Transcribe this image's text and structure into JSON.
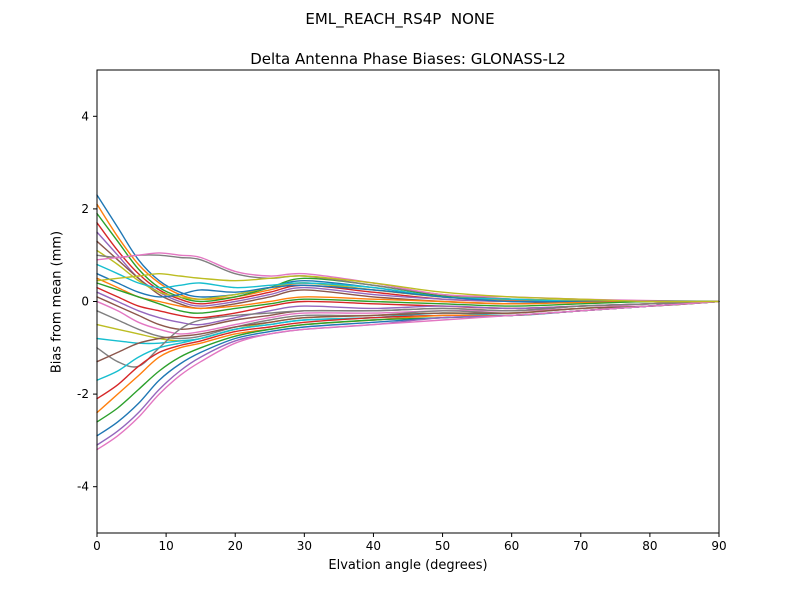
{
  "chart_data": {
    "type": "line",
    "suptitle": "EML_REACH_RS4P  NONE",
    "title": "Delta Antenna Phase Biases: GLONASS-L2",
    "xlabel": "Elvation angle (degrees)",
    "ylabel": "Bias from mean (mm)",
    "xlim": [
      0,
      90
    ],
    "ylim": [
      -5,
      5
    ],
    "xticks": [
      0,
      10,
      20,
      30,
      40,
      50,
      60,
      70,
      80,
      90
    ],
    "yticks": [
      -4,
      -2,
      0,
      2,
      4
    ],
    "grid": false,
    "legend": "none",
    "x": [
      0,
      3,
      6,
      9,
      12,
      15,
      20,
      25,
      30,
      40,
      50,
      60,
      70,
      80,
      90
    ],
    "series": [
      {
        "name": "line-01",
        "color": "#1f77b4",
        "values": [
          2.3,
          1.6,
          0.9,
          0.45,
          0.2,
          0.1,
          0.15,
          0.3,
          0.45,
          0.3,
          0.1,
          0.05,
          0.02,
          0.01,
          0.0
        ]
      },
      {
        "name": "line-02",
        "color": "#ff7f0e",
        "values": [
          2.1,
          1.4,
          0.8,
          0.4,
          0.15,
          0.05,
          0.1,
          0.25,
          0.4,
          0.25,
          0.1,
          0.03,
          0.02,
          0.0,
          0.0
        ]
      },
      {
        "name": "line-03",
        "color": "#2ca02c",
        "values": [
          1.9,
          1.3,
          0.7,
          0.3,
          0.1,
          0.0,
          0.1,
          0.3,
          0.5,
          0.35,
          0.12,
          0.05,
          0.0,
          0.0,
          0.0
        ]
      },
      {
        "name": "line-04",
        "color": "#d62728",
        "values": [
          1.7,
          1.1,
          0.6,
          0.25,
          0.05,
          -0.05,
          0.05,
          0.2,
          0.35,
          0.2,
          0.05,
          0.0,
          0.0,
          0.0,
          0.0
        ]
      },
      {
        "name": "line-05",
        "color": "#9467bd",
        "values": [
          1.5,
          1.0,
          0.5,
          0.2,
          0.0,
          -0.1,
          0.0,
          0.15,
          0.3,
          0.15,
          0.05,
          0.0,
          0.0,
          0.0,
          0.0
        ]
      },
      {
        "name": "line-06",
        "color": "#8c564b",
        "values": [
          1.3,
          0.9,
          0.5,
          0.15,
          -0.05,
          -0.15,
          -0.05,
          0.1,
          0.25,
          0.1,
          0.0,
          -0.05,
          0.0,
          0.0,
          0.0
        ]
      },
      {
        "name": "line-07",
        "color": "#bcbd22",
        "values": [
          1.1,
          0.8,
          0.45,
          0.2,
          0.1,
          0.05,
          0.15,
          0.3,
          0.4,
          0.25,
          0.1,
          0.05,
          0.02,
          0.0,
          0.0
        ]
      },
      {
        "name": "line-08",
        "color": "#7f7f7f",
        "values": [
          1.0,
          0.95,
          1.0,
          1.0,
          0.95,
          0.9,
          0.6,
          0.5,
          0.55,
          0.35,
          0.15,
          0.05,
          0.0,
          0.0,
          0.0
        ]
      },
      {
        "name": "line-09",
        "color": "#e377c2",
        "values": [
          0.9,
          0.95,
          1.0,
          1.05,
          1.0,
          0.95,
          0.65,
          0.55,
          0.6,
          0.4,
          0.15,
          0.1,
          0.05,
          0.02,
          0.0
        ]
      },
      {
        "name": "line-10",
        "color": "#17becf",
        "values": [
          0.8,
          0.6,
          0.4,
          0.3,
          0.35,
          0.4,
          0.3,
          0.35,
          0.4,
          0.3,
          0.1,
          0.05,
          0.0,
          0.0,
          0.0
        ]
      },
      {
        "name": "line-11",
        "color": "#1f77b4",
        "values": [
          0.6,
          0.4,
          0.2,
          0.1,
          0.15,
          0.25,
          0.2,
          0.3,
          0.35,
          0.25,
          0.1,
          0.0,
          0.0,
          0.0,
          0.0
        ]
      },
      {
        "name": "line-12",
        "color": "#ff7f0e",
        "values": [
          0.5,
          0.3,
          0.1,
          0.0,
          -0.1,
          -0.15,
          -0.1,
          0.0,
          0.1,
          0.05,
          0.0,
          -0.05,
          -0.02,
          0.0,
          0.0
        ]
      },
      {
        "name": "line-13",
        "color": "#2ca02c",
        "values": [
          0.4,
          0.25,
          0.1,
          -0.05,
          -0.2,
          -0.25,
          -0.15,
          -0.05,
          0.05,
          0.0,
          -0.05,
          -0.1,
          -0.05,
          0.0,
          0.0
        ]
      },
      {
        "name": "line-14",
        "color": "#d62728",
        "values": [
          0.3,
          0.1,
          -0.1,
          -0.2,
          -0.3,
          -0.35,
          -0.25,
          -0.1,
          0.0,
          -0.05,
          -0.1,
          -0.15,
          -0.1,
          -0.05,
          0.0
        ]
      },
      {
        "name": "line-15",
        "color": "#9467bd",
        "values": [
          0.2,
          0.0,
          -0.2,
          -0.35,
          -0.45,
          -0.5,
          -0.35,
          -0.2,
          -0.1,
          -0.15,
          -0.1,
          -0.15,
          -0.1,
          -0.05,
          0.0
        ]
      },
      {
        "name": "line-16",
        "color": "#8c564b",
        "values": [
          0.1,
          -0.1,
          -0.3,
          -0.5,
          -0.6,
          -0.55,
          -0.4,
          -0.3,
          -0.2,
          -0.2,
          -0.15,
          -0.2,
          -0.1,
          -0.05,
          0.0
        ]
      },
      {
        "name": "line-17",
        "color": "#e377c2",
        "values": [
          0.0,
          -0.2,
          -0.45,
          -0.6,
          -0.7,
          -0.65,
          -0.5,
          -0.35,
          -0.25,
          -0.25,
          -0.2,
          -0.2,
          -0.15,
          -0.05,
          0.0
        ]
      },
      {
        "name": "line-18",
        "color": "#7f7f7f",
        "values": [
          -0.2,
          -0.4,
          -0.6,
          -0.75,
          -0.8,
          -0.75,
          -0.55,
          -0.4,
          -0.3,
          -0.3,
          -0.2,
          -0.25,
          -0.15,
          -0.1,
          0.0
        ]
      },
      {
        "name": "line-19",
        "color": "#bcbd22",
        "values": [
          -0.5,
          -0.6,
          -0.7,
          -0.8,
          -0.85,
          -0.8,
          -0.6,
          -0.45,
          -0.35,
          -0.3,
          -0.25,
          -0.25,
          -0.15,
          -0.1,
          0.0
        ]
      },
      {
        "name": "line-20",
        "color": "#17becf",
        "values": [
          -0.8,
          -0.85,
          -0.9,
          -0.9,
          -0.85,
          -0.8,
          -0.6,
          -0.5,
          -0.4,
          -0.35,
          -0.25,
          -0.3,
          -0.2,
          -0.1,
          0.0
        ]
      },
      {
        "name": "line-21",
        "color": "#7f7f7f",
        "values": [
          -1.0,
          -1.3,
          -1.4,
          -1.0,
          -0.6,
          -0.4,
          -0.3,
          -0.25,
          -0.2,
          -0.2,
          -0.15,
          -0.2,
          -0.1,
          -0.05,
          0.0
        ]
      },
      {
        "name": "line-22",
        "color": "#8c564b",
        "values": [
          -1.3,
          -1.1,
          -0.9,
          -0.8,
          -0.75,
          -0.7,
          -0.55,
          -0.45,
          -0.35,
          -0.3,
          -0.25,
          -0.25,
          -0.15,
          -0.1,
          0.0
        ]
      },
      {
        "name": "line-23",
        "color": "#17becf",
        "values": [
          -1.7,
          -1.5,
          -1.2,
          -1.0,
          -0.9,
          -0.8,
          -0.6,
          -0.5,
          -0.4,
          -0.35,
          -0.3,
          -0.3,
          -0.2,
          -0.1,
          0.0
        ]
      },
      {
        "name": "line-24",
        "color": "#d62728",
        "values": [
          -2.1,
          -1.8,
          -1.4,
          -1.1,
          -0.95,
          -0.85,
          -0.65,
          -0.55,
          -0.45,
          -0.35,
          -0.3,
          -0.3,
          -0.2,
          -0.1,
          0.0
        ]
      },
      {
        "name": "line-25",
        "color": "#ff7f0e",
        "values": [
          -2.4,
          -2.0,
          -1.6,
          -1.2,
          -1.0,
          -0.9,
          -0.7,
          -0.6,
          -0.5,
          -0.4,
          -0.3,
          -0.3,
          -0.2,
          -0.1,
          0.0
        ]
      },
      {
        "name": "line-26",
        "color": "#2ca02c",
        "values": [
          -2.6,
          -2.3,
          -1.9,
          -1.5,
          -1.2,
          -1.0,
          -0.75,
          -0.6,
          -0.5,
          -0.4,
          -0.35,
          -0.3,
          -0.2,
          -0.1,
          0.0
        ]
      },
      {
        "name": "line-27",
        "color": "#1f77b4",
        "values": [
          -2.9,
          -2.6,
          -2.2,
          -1.7,
          -1.35,
          -1.1,
          -0.8,
          -0.65,
          -0.55,
          -0.45,
          -0.35,
          -0.3,
          -0.2,
          -0.1,
          0.0
        ]
      },
      {
        "name": "line-28",
        "color": "#9467bd",
        "values": [
          -3.1,
          -2.8,
          -2.4,
          -1.9,
          -1.5,
          -1.2,
          -0.85,
          -0.7,
          -0.6,
          -0.5,
          -0.35,
          -0.3,
          -0.2,
          -0.1,
          0.0
        ]
      },
      {
        "name": "line-29",
        "color": "#e377c2",
        "values": [
          -3.2,
          -2.9,
          -2.5,
          -2.0,
          -1.6,
          -1.3,
          -0.9,
          -0.7,
          -0.6,
          -0.5,
          -0.4,
          -0.3,
          -0.2,
          -0.1,
          0.0
        ]
      },
      {
        "name": "line-30",
        "color": "#bcbd22",
        "values": [
          0.45,
          0.5,
          0.55,
          0.6,
          0.55,
          0.5,
          0.45,
          0.5,
          0.55,
          0.4,
          0.2,
          0.1,
          0.05,
          0.0,
          0.0
        ]
      }
    ]
  }
}
